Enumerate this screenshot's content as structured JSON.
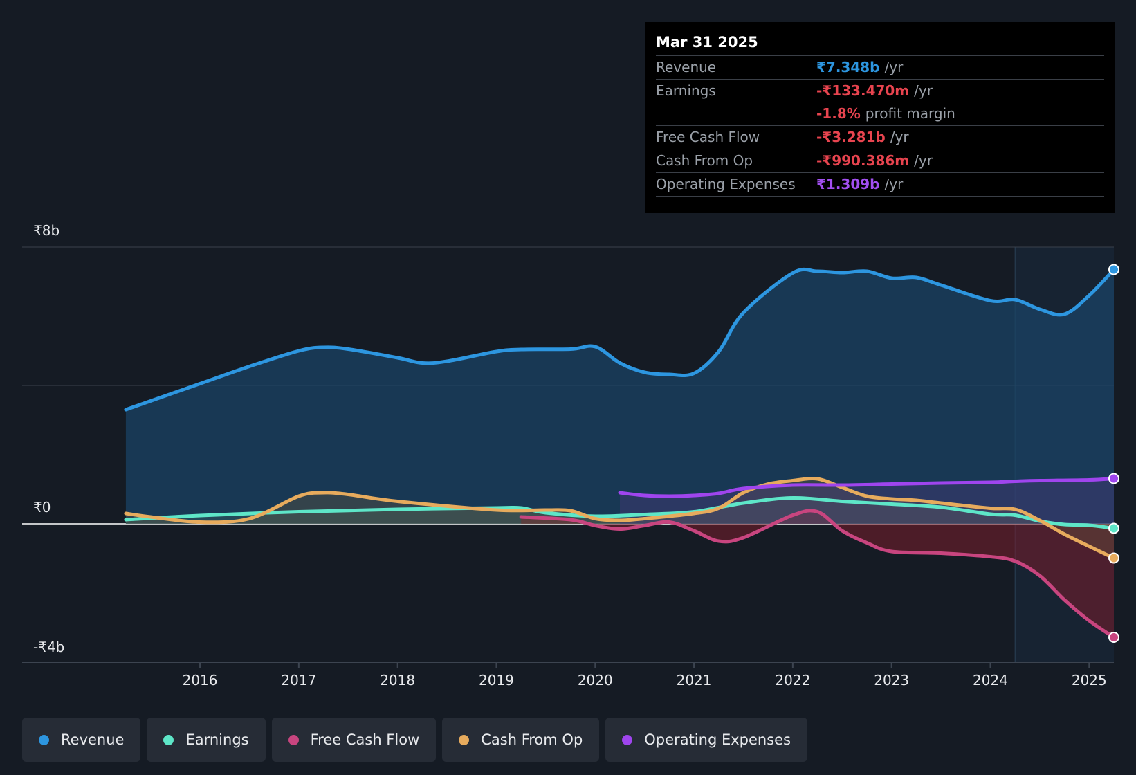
{
  "chart_data": {
    "type": "area",
    "y_unit": "₹b",
    "ylim": [
      -4,
      8
    ],
    "y_ticks": [
      {
        "value": 8,
        "label": "₹8b"
      },
      {
        "value": 0,
        "label": "₹0"
      },
      {
        "value": -4,
        "label": "-₹4b"
      }
    ],
    "x_ticks": [
      {
        "value": 2016,
        "label": "2016"
      },
      {
        "value": 2017,
        "label": "2017"
      },
      {
        "value": 2018,
        "label": "2018"
      },
      {
        "value": 2019,
        "label": "2019"
      },
      {
        "value": 2020,
        "label": "2020"
      },
      {
        "value": 2021,
        "label": "2021"
      },
      {
        "value": 2022,
        "label": "2022"
      },
      {
        "value": 2023,
        "label": "2023"
      },
      {
        "value": 2024,
        "label": "2024"
      },
      {
        "value": 2025,
        "label": "2025"
      }
    ],
    "xlim": [
      2014.2,
      2025.25
    ],
    "highlight_start": 2024.25,
    "series": [
      {
        "name": "Revenue",
        "color": "#2d96e0",
        "x": [
          2015.25,
          2015.5,
          2016.0,
          2016.5,
          2017.0,
          2017.25,
          2017.5,
          2018.0,
          2018.25,
          2018.5,
          2019.0,
          2019.25,
          2019.75,
          2020.0,
          2020.25,
          2020.5,
          2020.75,
          2021.0,
          2021.25,
          2021.5,
          2022.0,
          2022.25,
          2022.5,
          2022.75,
          2023.0,
          2023.25,
          2023.5,
          2024.0,
          2024.25,
          2024.5,
          2024.75,
          2025.0,
          2025.25
        ],
        "values": [
          3.3,
          3.55,
          4.05,
          4.55,
          5.0,
          5.1,
          5.05,
          4.8,
          4.65,
          4.7,
          4.98,
          5.04,
          5.05,
          5.12,
          4.65,
          4.38,
          4.32,
          4.35,
          4.98,
          6.1,
          7.25,
          7.3,
          7.26,
          7.3,
          7.1,
          7.12,
          6.9,
          6.45,
          6.48,
          6.2,
          6.06,
          6.6,
          7.35
        ]
      },
      {
        "name": "Earnings",
        "color": "#5ee6c8",
        "x": [
          2015.25,
          2016.0,
          2017.0,
          2018.0,
          2019.0,
          2019.25,
          2019.5,
          2020.0,
          2020.5,
          2021.0,
          2021.5,
          2022.0,
          2022.5,
          2023.0,
          2023.5,
          2024.0,
          2024.25,
          2024.5,
          2024.75,
          2025.0,
          2025.25
        ],
        "values": [
          0.12,
          0.24,
          0.35,
          0.42,
          0.46,
          0.46,
          0.32,
          0.22,
          0.27,
          0.35,
          0.6,
          0.75,
          0.65,
          0.57,
          0.48,
          0.28,
          0.25,
          0.08,
          -0.02,
          -0.04,
          -0.13
        ]
      },
      {
        "name": "Free Cash Flow",
        "color": "#c8457f",
        "x": [
          2019.25,
          2019.75,
          2020.0,
          2020.25,
          2020.5,
          2020.75,
          2021.0,
          2021.25,
          2021.5,
          2022.0,
          2022.25,
          2022.5,
          2022.75,
          2023.0,
          2023.5,
          2024.0,
          2024.25,
          2024.5,
          2024.75,
          2025.0,
          2025.25
        ],
        "values": [
          0.2,
          0.12,
          -0.05,
          -0.15,
          -0.05,
          0.05,
          -0.2,
          -0.5,
          -0.4,
          0.25,
          0.35,
          -0.2,
          -0.55,
          -0.8,
          -0.85,
          -0.95,
          -1.08,
          -1.5,
          -2.2,
          -2.8,
          -3.28
        ]
      },
      {
        "name": "Cash From Op",
        "color": "#e7ab5d",
        "x": [
          2015.25,
          2015.5,
          2016.0,
          2016.5,
          2017.0,
          2017.25,
          2017.5,
          2018.0,
          2019.0,
          2019.5,
          2019.75,
          2020.0,
          2020.25,
          2020.5,
          2021.0,
          2021.25,
          2021.5,
          2021.75,
          2022.0,
          2022.25,
          2022.5,
          2022.75,
          2023.0,
          2023.25,
          2023.5,
          2024.0,
          2024.25,
          2024.5,
          2024.75,
          2025.0,
          2025.25
        ],
        "values": [
          0.3,
          0.2,
          0.05,
          0.15,
          0.8,
          0.9,
          0.85,
          0.65,
          0.4,
          0.4,
          0.38,
          0.15,
          0.1,
          0.15,
          0.3,
          0.45,
          0.9,
          1.15,
          1.25,
          1.3,
          1.05,
          0.8,
          0.72,
          0.68,
          0.6,
          0.45,
          0.42,
          0.1,
          -0.3,
          -0.65,
          -0.99
        ]
      },
      {
        "name": "Operating Expenses",
        "color": "#9f45ee",
        "x": [
          2020.25,
          2020.5,
          2020.75,
          2021.0,
          2021.25,
          2021.5,
          2022.0,
          2022.5,
          2023.0,
          2023.5,
          2024.0,
          2024.25,
          2024.5,
          2025.0,
          2025.25
        ],
        "values": [
          0.9,
          0.82,
          0.8,
          0.82,
          0.88,
          1.02,
          1.12,
          1.12,
          1.15,
          1.18,
          1.2,
          1.23,
          1.25,
          1.27,
          1.31
        ]
      }
    ]
  },
  "tooltip": {
    "date": "Mar 31 2025",
    "revenue": {
      "label": "Revenue",
      "value": "₹7.348b",
      "unit": "/yr",
      "color": "#2d96e0"
    },
    "earnings": {
      "label": "Earnings",
      "value": "-₹133.470m",
      "unit": "/yr",
      "color": "#e8444f"
    },
    "margin": {
      "value": "-1.8%",
      "unit": "profit margin",
      "color": "#e8444f"
    },
    "fcf": {
      "label": "Free Cash Flow",
      "value": "-₹3.281b",
      "unit": "/yr",
      "color": "#e8444f"
    },
    "cfo": {
      "label": "Cash From Op",
      "value": "-₹990.386m",
      "unit": "/yr",
      "color": "#e8444f"
    },
    "opex": {
      "label": "Operating Expenses",
      "value": "₹1.309b",
      "unit": "/yr",
      "color": "#a24ff0"
    }
  },
  "legend": [
    {
      "label": "Revenue",
      "color": "#2d96e0"
    },
    {
      "label": "Earnings",
      "color": "#5ee6c8"
    },
    {
      "label": "Free Cash Flow",
      "color": "#c8457f"
    },
    {
      "label": "Cash From Op",
      "color": "#e7ab5d"
    },
    {
      "label": "Operating Expenses",
      "color": "#9f45ee"
    }
  ]
}
